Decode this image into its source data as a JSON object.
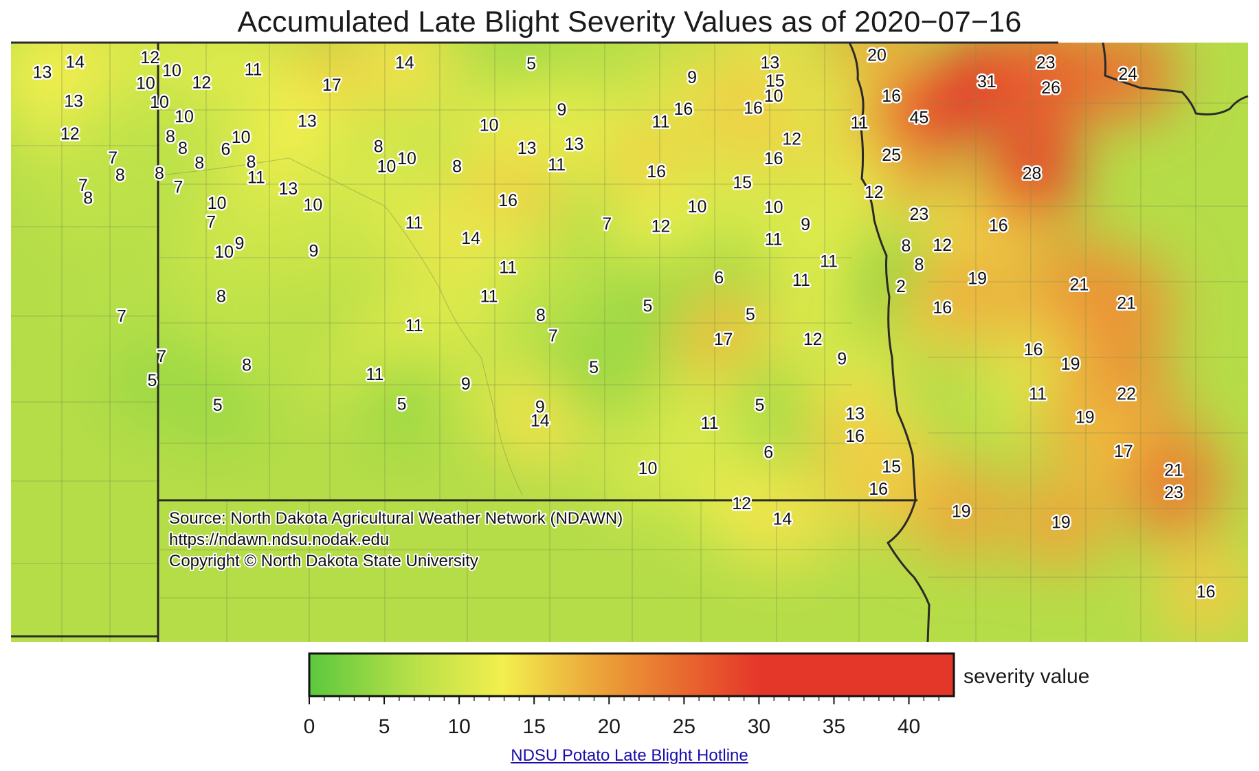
{
  "title": "Accumulated Late Blight Severity Values as of 2020−07−16",
  "source_lines": [
    "Source: North Dakota Agricultural Weather Network (NDAWN)",
    "https://ndawn.ndsu.nodak.edu",
    "Copyright © North Dakota State University"
  ],
  "legend": {
    "label": "severity value",
    "range": [
      0,
      43
    ],
    "ticks": [
      0,
      5,
      10,
      15,
      20,
      25,
      30,
      35,
      40
    ],
    "colors": [
      "#5cc83e",
      "#b7e048",
      "#f2ef4e",
      "#eca83a",
      "#e8692e",
      "#e5362a"
    ]
  },
  "link_text": "NDSU Potato Late Blight Hotline",
  "stations": [
    {
      "v": 14,
      "lon": -104.12,
      "lat": 48.98
    },
    {
      "v": 13,
      "lon": -104.57,
      "lat": 48.86
    },
    {
      "v": 13,
      "lon": -104.14,
      "lat": 48.52
    },
    {
      "v": 12,
      "lon": -104.19,
      "lat": 48.14
    },
    {
      "v": 7,
      "lon": -104.01,
      "lat": 47.54
    },
    {
      "v": 8,
      "lon": -103.94,
      "lat": 47.39
    },
    {
      "v": 12,
      "lon": -103.09,
      "lat": 49.03
    },
    {
      "v": 10,
      "lon": -102.79,
      "lat": 48.88
    },
    {
      "v": 10,
      "lon": -103.15,
      "lat": 48.73
    },
    {
      "v": 11,
      "lon": -101.67,
      "lat": 48.89
    },
    {
      "v": 12,
      "lon": -102.38,
      "lat": 48.74
    },
    {
      "v": 10,
      "lon": -102.96,
      "lat": 48.51
    },
    {
      "v": 10,
      "lon": -102.62,
      "lat": 48.34
    },
    {
      "v": 8,
      "lon": -102.81,
      "lat": 48.11
    },
    {
      "v": 8,
      "lon": -102.64,
      "lat": 47.97
    },
    {
      "v": 6,
      "lon": -102.05,
      "lat": 47.96
    },
    {
      "v": 10,
      "lon": -101.84,
      "lat": 48.1
    },
    {
      "v": 7,
      "lon": -103.6,
      "lat": 47.86
    },
    {
      "v": 8,
      "lon": -103.5,
      "lat": 47.66
    },
    {
      "v": 8,
      "lon": -102.96,
      "lat": 47.68
    },
    {
      "v": 8,
      "lon": -102.41,
      "lat": 47.8
    },
    {
      "v": 8,
      "lon": -101.7,
      "lat": 47.81
    },
    {
      "v": 7,
      "lon": -102.7,
      "lat": 47.52
    },
    {
      "v": 11,
      "lon": -101.63,
      "lat": 47.63
    },
    {
      "v": 10,
      "lon": -102.17,
      "lat": 47.33
    },
    {
      "v": 13,
      "lon": -101.19,
      "lat": 47.5
    },
    {
      "v": 7,
      "lon": -102.25,
      "lat": 47.11
    },
    {
      "v": 10,
      "lon": -100.85,
      "lat": 47.31
    },
    {
      "v": 9,
      "lon": -101.86,
      "lat": 46.86
    },
    {
      "v": 10,
      "lon": -102.07,
      "lat": 46.76
    },
    {
      "v": 9,
      "lon": -100.84,
      "lat": 46.77
    },
    {
      "v": 8,
      "lon": -102.11,
      "lat": 46.24
    },
    {
      "v": 7,
      "lon": -103.48,
      "lat": 46.01
    },
    {
      "v": 7,
      "lon": -102.93,
      "lat": 45.54
    },
    {
      "v": 8,
      "lon": -101.76,
      "lat": 45.44
    },
    {
      "v": 5,
      "lon": -103.06,
      "lat": 45.26
    },
    {
      "v": 5,
      "lon": -102.16,
      "lat": 44.97
    },
    {
      "v": 17,
      "lon": -100.59,
      "lat": 48.71
    },
    {
      "v": 14,
      "lon": -99.59,
      "lat": 48.97
    },
    {
      "v": 13,
      "lon": -100.93,
      "lat": 48.29
    },
    {
      "v": 8,
      "lon": -99.95,
      "lat": 47.99
    },
    {
      "v": 10,
      "lon": -99.56,
      "lat": 47.85
    },
    {
      "v": 10,
      "lon": -99.84,
      "lat": 47.76
    },
    {
      "v": 8,
      "lon": -98.87,
      "lat": 47.76
    },
    {
      "v": 11,
      "lon": -99.46,
      "lat": 47.1
    },
    {
      "v": 5,
      "lon": -97.85,
      "lat": 48.96
    },
    {
      "v": 10,
      "lon": -98.43,
      "lat": 48.24
    },
    {
      "v": 9,
      "lon": -97.43,
      "lat": 48.42
    },
    {
      "v": 13,
      "lon": -97.91,
      "lat": 47.97
    },
    {
      "v": 13,
      "lon": -97.26,
      "lat": 48.02
    },
    {
      "v": 11,
      "lon": -97.5,
      "lat": 47.78
    },
    {
      "v": 16,
      "lon": -98.17,
      "lat": 47.36
    },
    {
      "v": 14,
      "lon": -98.68,
      "lat": 46.92
    },
    {
      "v": 7,
      "lon": -96.81,
      "lat": 47.09
    },
    {
      "v": 11,
      "lon": -98.17,
      "lat": 46.58
    },
    {
      "v": 11,
      "lon": -98.43,
      "lat": 46.24
    },
    {
      "v": 8,
      "lon": -97.72,
      "lat": 46.02
    },
    {
      "v": 7,
      "lon": -97.55,
      "lat": 45.78
    },
    {
      "v": 11,
      "lon": -99.46,
      "lat": 45.9
    },
    {
      "v": 11,
      "lon": -100.0,
      "lat": 45.33
    },
    {
      "v": 9,
      "lon": -98.75,
      "lat": 45.22
    },
    {
      "v": 9,
      "lon": -97.73,
      "lat": 44.95
    },
    {
      "v": 5,
      "lon": -99.63,
      "lat": 44.98
    },
    {
      "v": 14,
      "lon": -97.73,
      "lat": 44.79
    },
    {
      "v": 9,
      "lon": -95.64,
      "lat": 48.8
    },
    {
      "v": 13,
      "lon": -94.57,
      "lat": 48.97
    },
    {
      "v": 15,
      "lon": -94.5,
      "lat": 48.76
    },
    {
      "v": 10,
      "lon": -94.52,
      "lat": 48.58
    },
    {
      "v": 16,
      "lon": -95.76,
      "lat": 48.43
    },
    {
      "v": 16,
      "lon": -94.8,
      "lat": 48.44
    },
    {
      "v": 11,
      "lon": -96.07,
      "lat": 48.28
    },
    {
      "v": 12,
      "lon": -94.27,
      "lat": 48.08
    },
    {
      "v": 16,
      "lon": -94.52,
      "lat": 47.85
    },
    {
      "v": 16,
      "lon": -96.13,
      "lat": 47.7
    },
    {
      "v": 15,
      "lon": -94.95,
      "lat": 47.57
    },
    {
      "v": 10,
      "lon": -95.57,
      "lat": 47.29
    },
    {
      "v": 10,
      "lon": -94.52,
      "lat": 47.28
    },
    {
      "v": 12,
      "lon": -96.07,
      "lat": 47.06
    },
    {
      "v": 9,
      "lon": -94.08,
      "lat": 47.08
    },
    {
      "v": 11,
      "lon": -94.52,
      "lat": 46.91
    },
    {
      "v": 11,
      "lon": -93.76,
      "lat": 46.65
    },
    {
      "v": 11,
      "lon": -94.14,
      "lat": 46.43
    },
    {
      "v": 6,
      "lon": -95.27,
      "lat": 46.46
    },
    {
      "v": 5,
      "lon": -96.25,
      "lat": 46.13
    },
    {
      "v": 5,
      "lon": -94.84,
      "lat": 46.03
    },
    {
      "v": 17,
      "lon": -95.21,
      "lat": 45.74
    },
    {
      "v": 12,
      "lon": -93.98,
      "lat": 45.74
    },
    {
      "v": 9,
      "lon": -93.58,
      "lat": 45.51
    },
    {
      "v": 5,
      "lon": -96.99,
      "lat": 45.41
    },
    {
      "v": 5,
      "lon": -94.71,
      "lat": 44.97
    },
    {
      "v": 11,
      "lon": -95.4,
      "lat": 44.76
    },
    {
      "v": 13,
      "lon": -93.4,
      "lat": 44.87
    },
    {
      "v": 16,
      "lon": -93.4,
      "lat": 44.61
    },
    {
      "v": 6,
      "lon": -94.59,
      "lat": 44.42
    },
    {
      "v": 10,
      "lon": -96.25,
      "lat": 44.23
    },
    {
      "v": 12,
      "lon": -94.96,
      "lat": 43.82
    },
    {
      "v": 14,
      "lon": -94.4,
      "lat": 43.64
    },
    {
      "v": 15,
      "lon": -92.9,
      "lat": 44.25
    },
    {
      "v": 16,
      "lon": -93.08,
      "lat": 43.99
    },
    {
      "v": 20,
      "lon": -93.1,
      "lat": 49.06
    },
    {
      "v": 16,
      "lon": -92.9,
      "lat": 48.58
    },
    {
      "v": 11,
      "lon": -93.34,
      "lat": 48.27
    },
    {
      "v": 45,
      "lon": -92.52,
      "lat": 48.33
    },
    {
      "v": 25,
      "lon": -92.9,
      "lat": 47.89
    },
    {
      "v": 12,
      "lon": -93.14,
      "lat": 47.46
    },
    {
      "v": 23,
      "lon": -92.52,
      "lat": 47.2
    },
    {
      "v": 8,
      "lon": -92.7,
      "lat": 46.83
    },
    {
      "v": 8,
      "lon": -92.52,
      "lat": 46.61
    },
    {
      "v": 12,
      "lon": -92.2,
      "lat": 46.84
    },
    {
      "v": 2,
      "lon": -92.77,
      "lat": 46.36
    },
    {
      "v": 16,
      "lon": -92.2,
      "lat": 46.11
    },
    {
      "v": 19,
      "lon": -91.72,
      "lat": 46.45
    },
    {
      "v": 16,
      "lon": -91.43,
      "lat": 47.07
    },
    {
      "v": 19,
      "lon": -91.94,
      "lat": 43.73
    },
    {
      "v": 31,
      "lon": -91.59,
      "lat": 48.75
    },
    {
      "v": 23,
      "lon": -90.78,
      "lat": 48.97
    },
    {
      "v": 26,
      "lon": -90.71,
      "lat": 48.68
    },
    {
      "v": 24,
      "lon": -89.65,
      "lat": 48.84
    },
    {
      "v": 28,
      "lon": -90.97,
      "lat": 47.68
    },
    {
      "v": 21,
      "lon": -90.32,
      "lat": 46.38
    },
    {
      "v": 21,
      "lon": -89.67,
      "lat": 46.16
    },
    {
      "v": 16,
      "lon": -90.95,
      "lat": 45.62
    },
    {
      "v": 19,
      "lon": -90.44,
      "lat": 45.45
    },
    {
      "v": 11,
      "lon": -90.89,
      "lat": 45.1
    },
    {
      "v": 22,
      "lon": -89.67,
      "lat": 45.1
    },
    {
      "v": 19,
      "lon": -90.24,
      "lat": 44.83
    },
    {
      "v": 17,
      "lon": -89.71,
      "lat": 44.43
    },
    {
      "v": 21,
      "lon": -89.02,
      "lat": 44.21
    },
    {
      "v": 23,
      "lon": -89.02,
      "lat": 43.95
    },
    {
      "v": 19,
      "lon": -90.57,
      "lat": 43.6
    },
    {
      "v": 16,
      "lon": -88.58,
      "lat": 42.79
    }
  ]
}
